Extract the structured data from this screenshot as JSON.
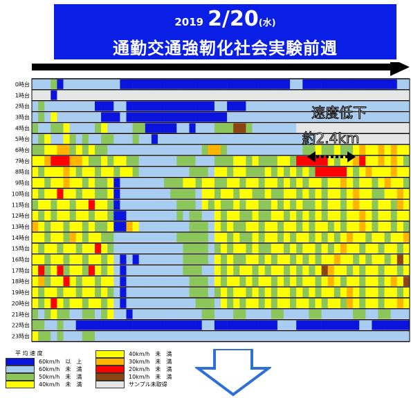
{
  "title": {
    "year": "2019",
    "date": "2/20",
    "dow": "(水)",
    "subtitle": "通勤交通強靭化社会実験前週"
  },
  "annotation": {
    "line1": "速度低下",
    "line2": "約2.4km"
  },
  "legend": {
    "title": "平 均 速 度",
    "items": [
      {
        "key": "v60p",
        "label": "60km/h　以　上",
        "color": "#0a14dc"
      },
      {
        "key": "v60",
        "label": "60km/h　未　満",
        "color": "#a8cdf0"
      },
      {
        "key": "v50",
        "label": "50km/h　未　満",
        "color": "#8cc55a"
      },
      {
        "key": "v40",
        "label": "40km/h　未　満",
        "color": "#ffff00"
      },
      {
        "key": "v40b",
        "label": "40km/h　未　満",
        "color": "#ffff00"
      },
      {
        "key": "v30",
        "label": "30km/h　未　満",
        "color": "#ffb400"
      },
      {
        "key": "v20",
        "label": "20km/h　未　満",
        "color": "#ff0000"
      },
      {
        "key": "v10",
        "label": "10km/h　未　満",
        "color": "#8b4513"
      },
      {
        "key": "nd",
        "label": "サンプル未取得",
        "color": "#e6e6e6"
      }
    ]
  },
  "chart_data": {
    "type": "heatmap",
    "title": "2019 2/20(水) 通勤交通強靭化社会実験前週",
    "rows": [
      "0時台",
      "1時台",
      "2時台",
      "3時台",
      "4時台",
      "5時台",
      "6時台",
      "7時台",
      "8時台",
      "9時台",
      "10時台",
      "11時台",
      "12時台",
      "13時台",
      "14時台",
      "15時台",
      "16時台",
      "17時台",
      "18時台",
      "19時台",
      "20時台",
      "21時台",
      "22時台",
      "23時台"
    ],
    "columns": 60,
    "category_codes": {
      "B": "60km/h 以上",
      "L": "60km/h 未満",
      "G": "50km/h 未満",
      "Y": "40km/h 未満",
      "O": "30km/h 未満",
      "R": "20km/h 未満",
      "N": "10km/h 未満",
      "W": "サンプル未取得"
    },
    "cells": [
      "LLLGBLLLLLLLLLBBBBBBBBBBBBBBBBBBBBBBBBBBBLLBBBBBBBBBBBBBBBLL",
      "WWWBWWWWWWWWWWWWWWWWWWWWWWWWWWWWWWWWWWWWWWWWWWWWWWWWWWWWWWWW",
      "LGLLLLLLLLBBBLLBBBBBBBBBBBBBBLLBBBLLLLLLLLLLLLLLLLLLLLLLLLLL",
      "LGLYLLLLLLLBBBLBBBBBBBBBBBBBBBBLLLLLLLLLLLLLLLLLLLLLLLLLLLLL",
      "GLLGGYLLLLGYLLLLGGBBBBBLLBLLLGGGNNGLLLLLLLWWWWWWWWWWWWWWWWWW",
      "LGYLLYGLGLLGGLLLGLLBLLLLLLLLLLLLLLLLLLLLLLLLLWWWWWWWWWWWWWWW",
      "GGYYOOGYGYGGLLLLLLLLLLLLLLLGOOGLLLLLLLLLLLLGGYGGYGGYOYYOYOYY",
      "YYORRROOYGGYGYYGGLLLLLLGGGLLLGGGYYGYGGGYYGRRRRRYGYYORYYOYOYG",
      "YGYYYOYGYYGYYGYYGLLLLLLLLGGGLYYGYYGGGYGYGYGYGRRRRRYGYOYYYOYY",
      "YYGYYOYYGYGGYBLLLLLLLGGGYYGYYGGYYGYYGYYGYGYGYYGYYOYGYYGYOYYG",
      "YGYYRYYGYYGGYBLLLLLLLLGGGGLYYGYYGYYGGYGGYYGYGYGYYGYOYYGGYYOY",
      "GYYGYYGYYRYYGBLLLLLLLLLGGGLYGYGGYGYYGGYGYGYGGYGYYGYOYYGYYGOY",
      "YGYGYYGYYGYYGBBLLLLLLLLGLGGLLYGYYGGYGGYYGYGYGYGYYGYYOYGYYGYY",
      "OYGYYGYYGYGGYBBOYLLLLLLLLGGGLYGYGGYYGYYGYYGYGYYGYGYYOYGYYGYG",
      "YYGYYGOYGYYGGLLLLLLLLLLGGGGGLYYGYGGYGYYGYGYYGYGYGYOYYGYYGYYO",
      "YGYYGYYGYYRYGLLLLLLLLLLLGGGGLGYGYYGYGGYYGYGYYGYGYOYYGYYGYYGY",
      "YYGYYGYYGYYGYLBLBLLLLLLLGGGGLYGYGGYYGYGYYGYGYGYYOYYGYGYYGYNY",
      "YRGYRGYYGRYGYLBLLLLLLLLLGGGLLYGYGYYGYGYYGYGYGYNOYYGYGYYGYYGY",
      "YOGYYRYGYYGYYLBLLLLLLLLLLGGGLYGYYGYGYYGYGYGYYGYOYGYYGYYGYOYN",
      "YGYYGYYGYYGYGLBLLLLLLLLLLGGGLGYGYYGYGYGYYGYGYGYYGYOYGYYGYYGY",
      "YGYRYGYYGYYGYLBLLLLLLLLLLLGGGLYGYGYYGYGYYGYYGYGYYGOYGYYGYYOY",
      "GLGYGGLLGGLGYLLBLLLLLLLLLLLGGLLLGGLLLLGGLLLLGGLLLLLGGLLGGLLL",
      "GGLLGLLBBBBBBBBBBBBBBBBBBBBLLBBBBBBBBBBLLLBBBBBBBBBBLLBBBBBB",
      "YGGLGLLLGGLLLLLLLLLLLLLLLLLLLLLLLLLLLLLLLLLLLLLLLLLLLLLLLLLL"
    ],
    "xlabel": "",
    "ylabel": ""
  }
}
